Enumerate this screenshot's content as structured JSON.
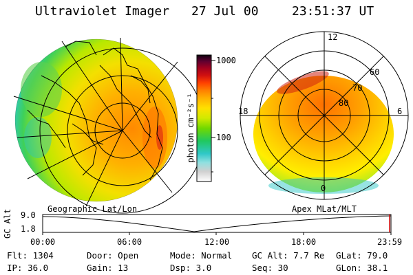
{
  "header": {
    "title": "Ultraviolet Imager",
    "date": "27 Jul 00",
    "time": "23:51:37 UT"
  },
  "colorbar": {
    "unit_label": "photon cm⁻²s⁻¹",
    "ticks": [
      "1000",
      "100"
    ]
  },
  "left_panel": {
    "caption": "Geographic Lat/Lon"
  },
  "right_panel": {
    "caption": "Apex MLat/MLT",
    "mlt_labels": [
      "12",
      "18",
      "6",
      "0"
    ],
    "mlat_labels": [
      "60",
      "70",
      "80"
    ]
  },
  "altitude_plot": {
    "ylabel": "GC Alt",
    "yticks": [
      "9.0",
      "1.8"
    ],
    "xticks": [
      "00:00",
      "06:00",
      "12:00",
      "18:00",
      "23:59"
    ]
  },
  "info": {
    "rows": [
      [
        {
          "label": "Flt:",
          "value": "1304"
        },
        {
          "label": "Door:",
          "value": "Open"
        },
        {
          "label": "Mode:",
          "value": "Normal"
        },
        {
          "label": "GC Alt:",
          "value": "7.7 Re"
        },
        {
          "label": "GLat:",
          "value": "79.0"
        }
      ],
      [
        {
          "label": "IP:",
          "value": "36.0"
        },
        {
          "label": "Gain:",
          "value": "13"
        },
        {
          "label": "Dsp:",
          "value": "3.0"
        },
        {
          "label": "Seq:",
          "value": "30"
        },
        {
          "label": "GLon:",
          "value": "38.1"
        }
      ]
    ]
  },
  "colors": {
    "low": "#d8d8d8",
    "mid": "#2ed13a",
    "high": "#ff9a00",
    "peak": "#d01010",
    "max": "#1a0020"
  }
}
